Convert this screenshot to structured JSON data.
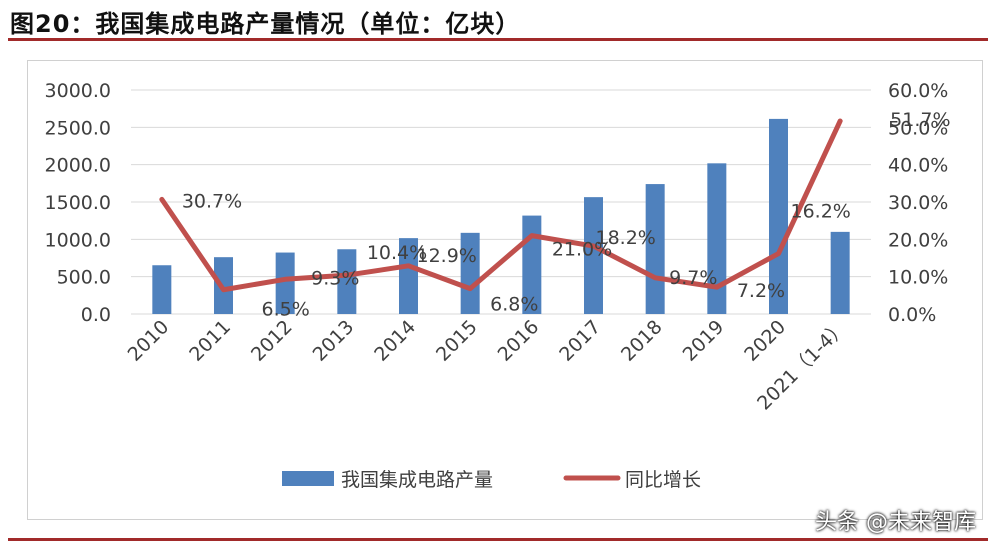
{
  "header": {
    "title": "图20：我国集成电路产量情况（单位：亿块）"
  },
  "watermark": {
    "text": "头条 @未来智库"
  },
  "colors": {
    "bar": "#4f81bd",
    "line": "#c0504d",
    "rule": "#a12a2a",
    "grid": "#d9d9d9",
    "text": "#404040"
  },
  "chart_data": {
    "type": "bar",
    "categories": [
      "2010",
      "2011",
      "2012",
      "2013",
      "2014",
      "2015",
      "2016",
      "2017",
      "2018",
      "2019",
      "2020",
      "2021（1-4）"
    ],
    "series": [
      {
        "name": "我国集成电路产量",
        "type": "bar",
        "axis": "left",
        "values": [
          653,
          761,
          823,
          867,
          1016,
          1087,
          1318,
          1565,
          1740,
          2018,
          2613,
          1100
        ]
      },
      {
        "name": "同比增长",
        "type": "line",
        "axis": "right",
        "values": [
          30.7,
          6.5,
          9.3,
          10.4,
          12.9,
          6.8,
          21.0,
          18.2,
          9.7,
          7.2,
          16.2,
          51.7
        ],
        "labels": [
          "30.7%",
          "6.5%",
          "9.3%",
          "10.4%",
          "12.9%",
          "6.8%",
          "21.0%",
          "18.2%",
          "9.7%",
          "7.2%",
          "16.2%",
          "51.7%"
        ]
      }
    ],
    "y_left": {
      "min": 0,
      "max": 3000,
      "ticks": [
        "0.0",
        "500.0",
        "1000.0",
        "1500.0",
        "2000.0",
        "2500.0",
        "3000.0"
      ]
    },
    "y_right": {
      "min": 0,
      "max": 60,
      "ticks": [
        "0.0%",
        "10.0%",
        "20.0%",
        "30.0%",
        "40.0%",
        "50.0%",
        "60.0%"
      ]
    },
    "grid": true,
    "legend": "bottom"
  }
}
